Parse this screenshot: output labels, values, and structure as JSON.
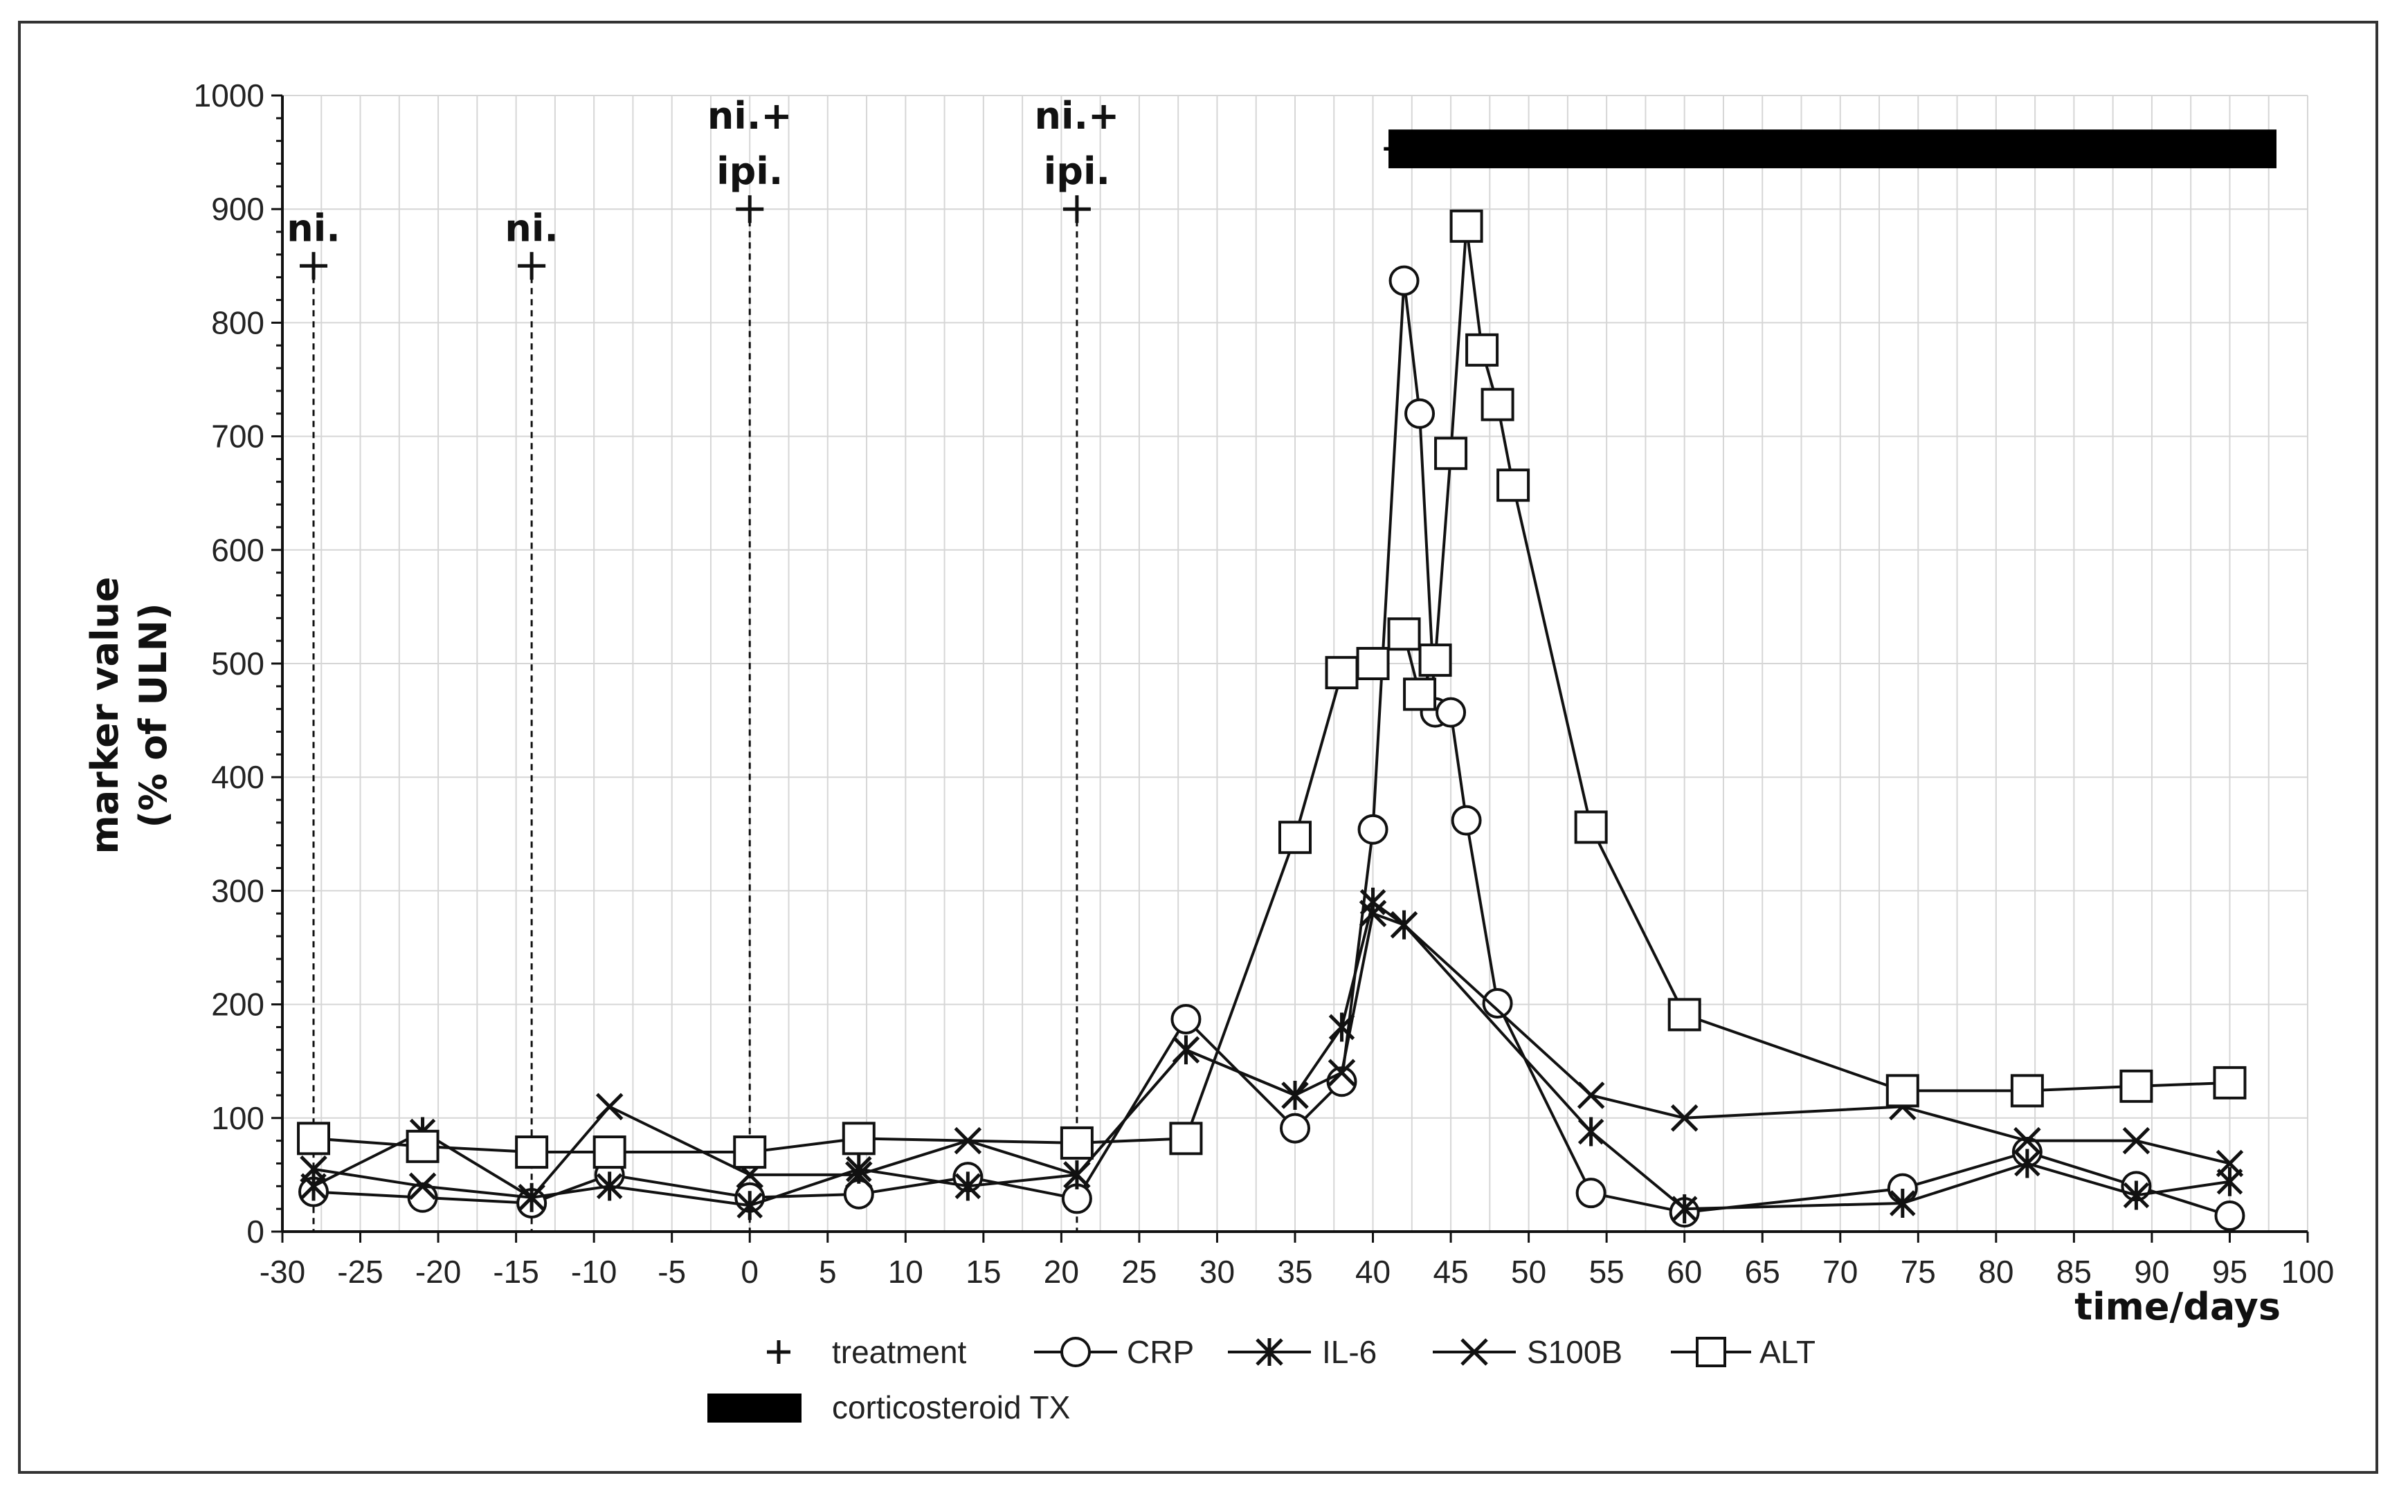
{
  "chart_data": {
    "type": "line",
    "xlabel": "time/days",
    "ylabel_line1": "marker value",
    "ylabel_line2": "(% of ULN)",
    "xlim": [
      -30,
      100
    ],
    "ylim": [
      0,
      1000
    ],
    "x_ticks": [
      -30,
      -25,
      -20,
      -15,
      -10,
      -5,
      0,
      5,
      10,
      15,
      20,
      25,
      30,
      35,
      40,
      45,
      50,
      55,
      60,
      65,
      70,
      75,
      80,
      85,
      90,
      95,
      100
    ],
    "y_ticks": [
      0,
      100,
      200,
      300,
      400,
      500,
      600,
      700,
      800,
      900,
      1000
    ],
    "grid": true,
    "series": [
      {
        "name": "CRP",
        "marker": "circle",
        "x": [
          -28,
          -21,
          -14,
          -9,
          0,
          7,
          14,
          21,
          28,
          35,
          38,
          40,
          42,
          43,
          44,
          45,
          46,
          48,
          54,
          60,
          74,
          82,
          89,
          95
        ],
        "y": [
          35,
          30,
          25,
          50,
          30,
          33,
          48,
          29,
          187,
          91,
          132,
          354,
          837,
          720,
          457,
          457,
          362,
          201,
          34,
          17,
          38,
          70,
          40,
          14
        ]
      },
      {
        "name": "IL-6",
        "marker": "asterisk",
        "x": [
          -28,
          -21,
          -14,
          -9,
          0,
          7,
          14,
          21,
          28,
          35,
          38,
          40,
          42,
          54,
          60,
          74,
          82,
          89,
          95
        ],
        "y": [
          40,
          88,
          30,
          40,
          23,
          55,
          40,
          50,
          160,
          120,
          180,
          290,
          270,
          88,
          20,
          25,
          60,
          32,
          44
        ]
      },
      {
        "name": "S100B",
        "marker": "x",
        "x": [
          -28,
          -21,
          -14,
          -9,
          0,
          7,
          14,
          21,
          28,
          35,
          38,
          40,
          42,
          54,
          60,
          74,
          82,
          89,
          95
        ],
        "y": [
          55,
          40,
          30,
          110,
          50,
          50,
          80,
          50,
          160,
          120,
          140,
          280,
          270,
          120,
          100,
          110,
          80,
          80,
          60
        ]
      },
      {
        "name": "ALT",
        "marker": "square",
        "x": [
          -28,
          -21,
          -14,
          -9,
          0,
          7,
          21,
          28,
          35,
          38,
          40,
          42,
          43,
          44,
          45,
          46,
          47,
          48,
          49,
          54,
          60,
          74,
          82,
          89,
          95
        ],
        "y": [
          82,
          75,
          70,
          70,
          70,
          82,
          78,
          82,
          347,
          492,
          500,
          526,
          473,
          503,
          685,
          885,
          776,
          728,
          657,
          356,
          191,
          124,
          124,
          128,
          131
        ]
      }
    ],
    "treatments": [
      {
        "x": -28,
        "y": 850,
        "label_lines": [
          "ni."
        ]
      },
      {
        "x": -14,
        "y": 850,
        "label_lines": [
          "ni."
        ]
      },
      {
        "x": 0,
        "y": 900,
        "label_lines": [
          "ni.+",
          "ipi."
        ]
      },
      {
        "x": 21,
        "y": 900,
        "label_lines": [
          "ni.+",
          "ipi."
        ]
      }
    ],
    "corticosteroid_bar": {
      "x_start": 41,
      "x_end": 98,
      "y": 953,
      "marker_x": 41.5
    },
    "legend": {
      "treatment": "treatment",
      "crp": "CRP",
      "il6": "IL-6",
      "s100b": "S100B",
      "alt": "ALT",
      "corticosteroid": "corticosteroid TX"
    },
    "colors": {
      "line": "#111111",
      "grid": "#d6d6d6",
      "bar": "#000000"
    }
  }
}
